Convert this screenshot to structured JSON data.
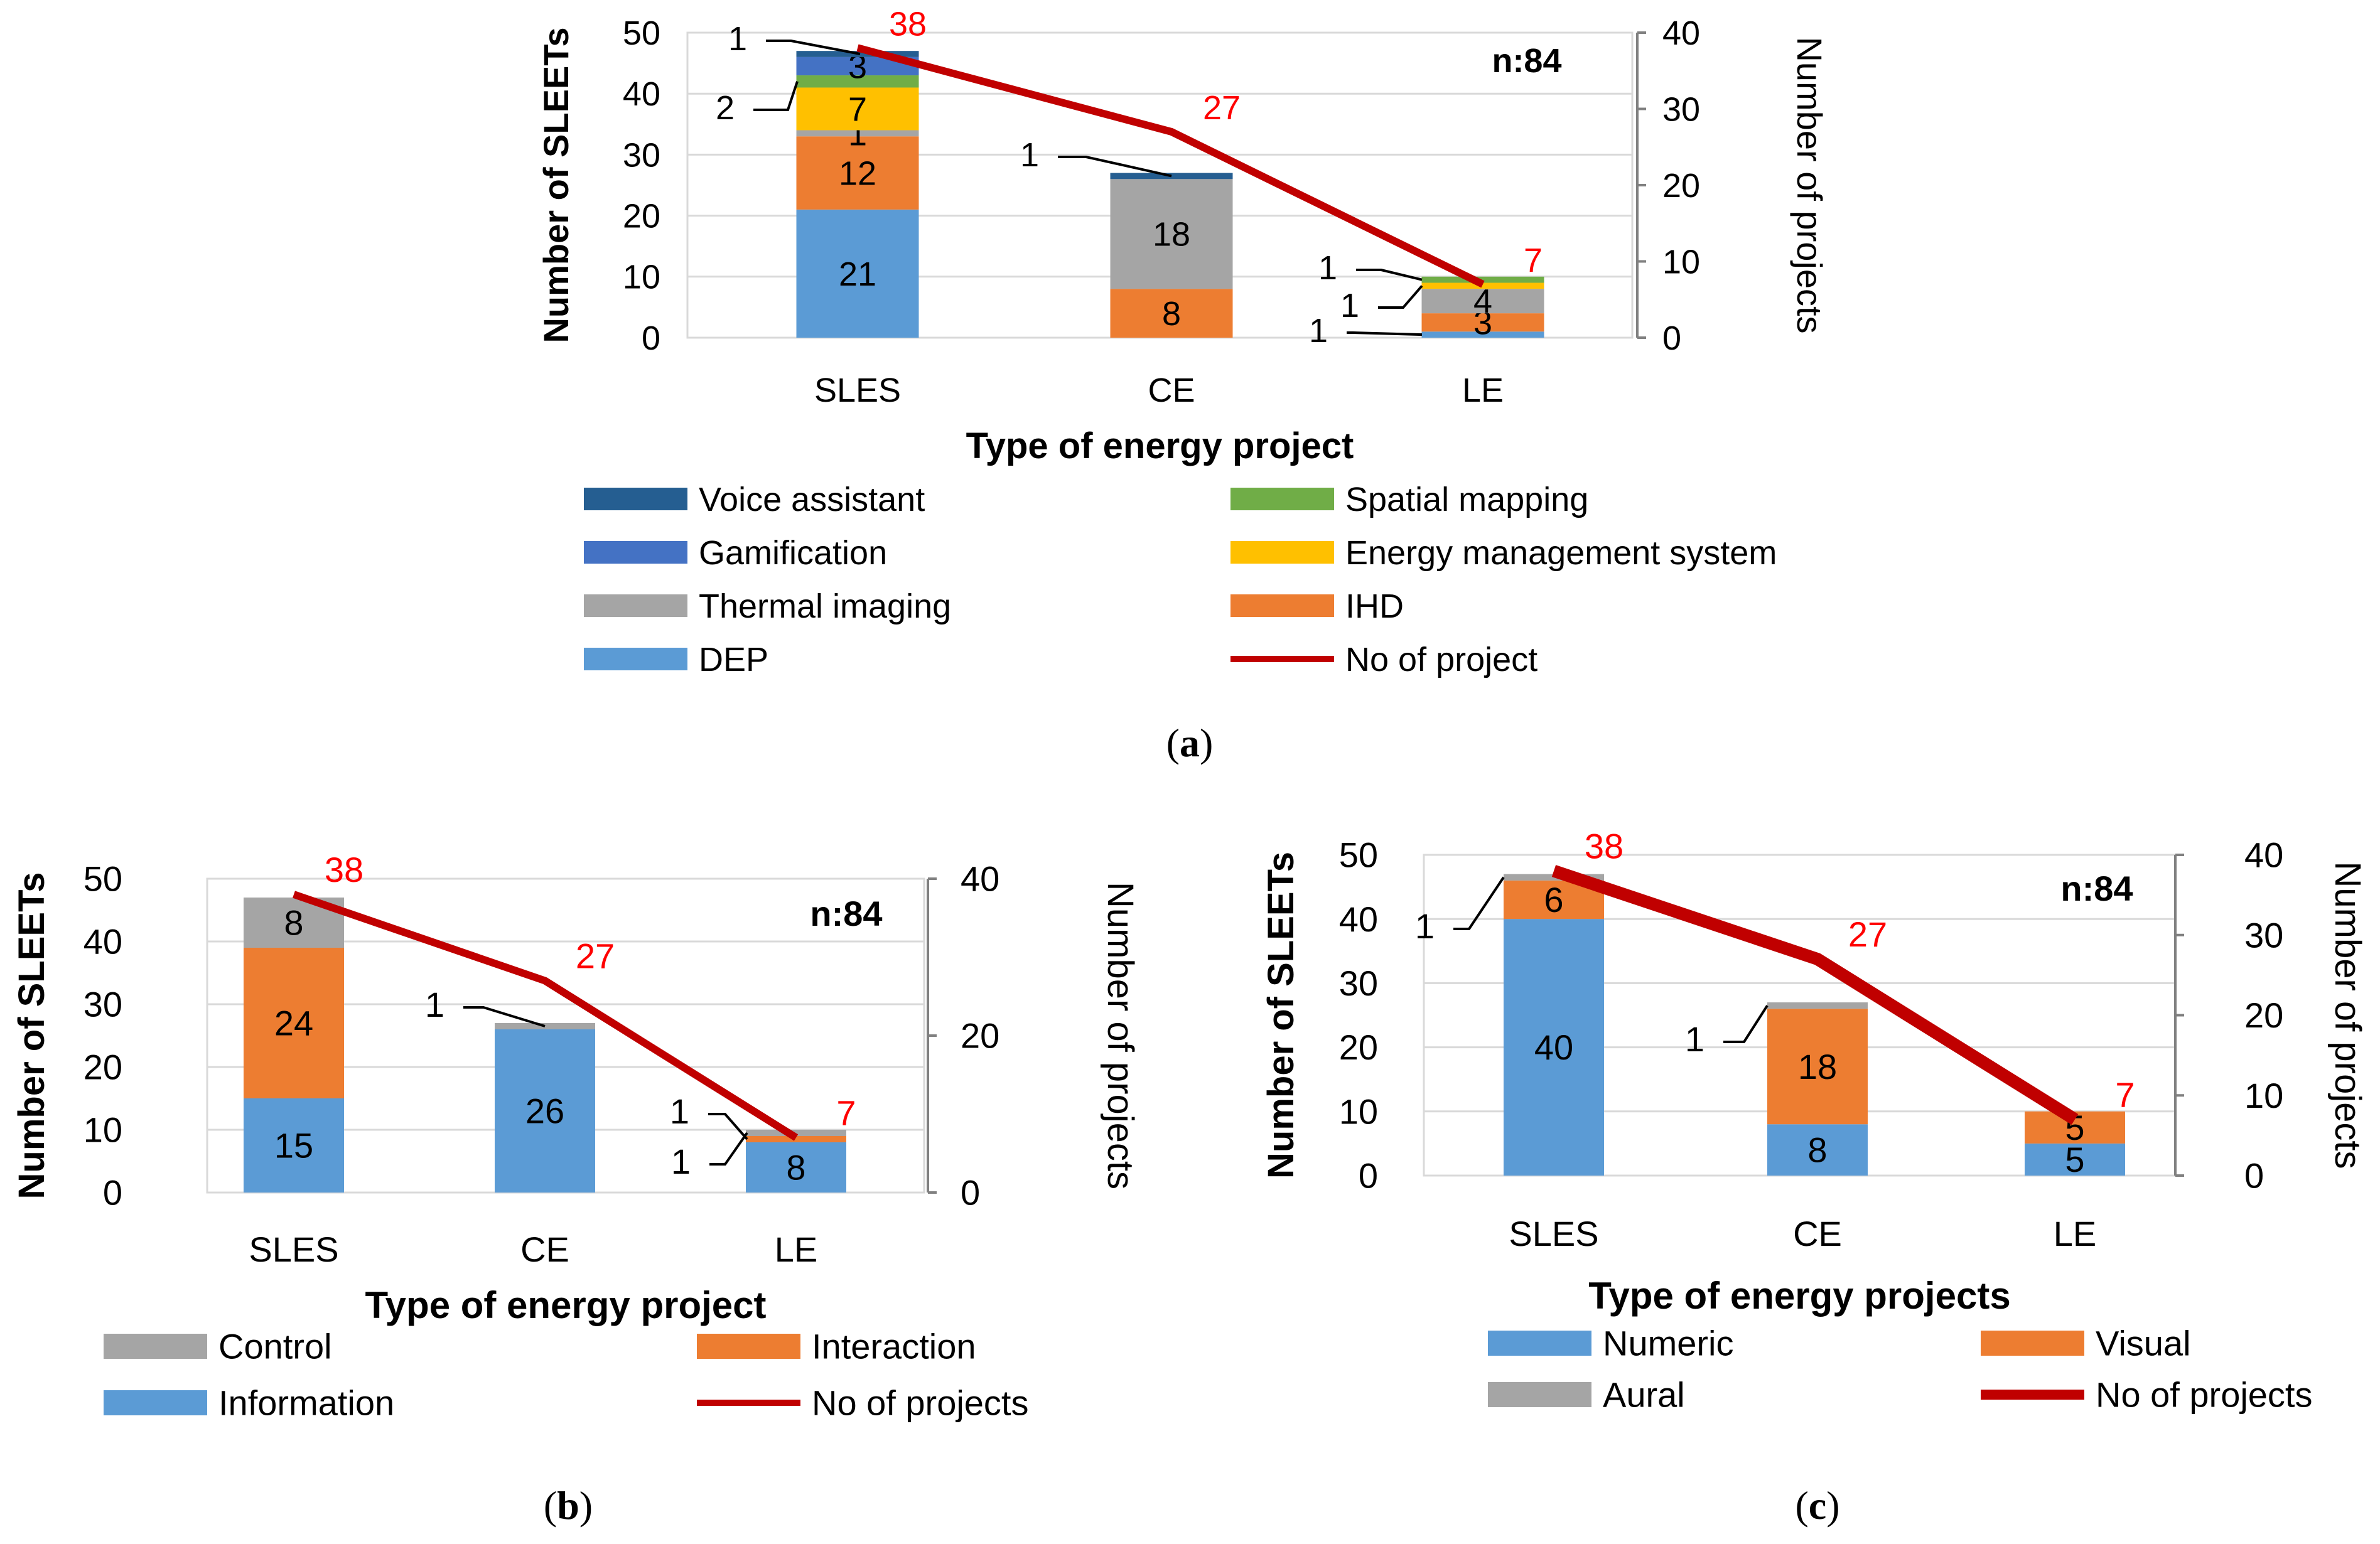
{
  "colors": {
    "voice": "#255E91",
    "gamification": "#4472C4",
    "thermal": "#A5A5A5",
    "dep": "#5B9BD5",
    "spatial": "#70AD47",
    "ems": "#FFC000",
    "ihd": "#ED7D31",
    "line": "#C00000",
    "axis_text": "#000000",
    "grid": "#D9D9D9",
    "red_label": "#FF0000"
  },
  "charts": [
    {
      "id": "a",
      "caption": "a",
      "annotation": "n:84",
      "chart_data": {
        "type": "bar",
        "stacked": true,
        "categories": [
          "SLES",
          "CE",
          "LE"
        ],
        "xlabel": "Type of energy project",
        "ylabel": "Number of SLEETs",
        "y2label": "Number of projects",
        "ylim": [
          0,
          50
        ],
        "y2lim": [
          0,
          40
        ],
        "yticks": [
          "0",
          "10",
          "20",
          "30",
          "40",
          "50"
        ],
        "y2ticks": [
          "0",
          "10",
          "20",
          "30",
          "40"
        ],
        "series": [
          {
            "name": "DEP",
            "color_key": "dep",
            "values": [
              21,
              0,
              1
            ],
            "labels": [
              "21",
              "",
              "1"
            ]
          },
          {
            "name": "IHD",
            "color_key": "ihd",
            "values": [
              12,
              8,
              3
            ],
            "labels": [
              "12",
              "8",
              "3"
            ]
          },
          {
            "name": "Thermal imaging",
            "color_key": "thermal",
            "values": [
              1,
              18,
              4
            ],
            "labels": [
              "1",
              "18",
              "4"
            ]
          },
          {
            "name": "Energy management system",
            "color_key": "ems",
            "values": [
              7,
              0,
              1
            ],
            "labels": [
              "7",
              "",
              "1"
            ]
          },
          {
            "name": "Spatial mapping",
            "color_key": "spatial",
            "values": [
              2,
              0,
              1
            ],
            "labels": [
              "2",
              "",
              "1"
            ]
          },
          {
            "name": "Gamification",
            "color_key": "gamification",
            "values": [
              3,
              0,
              0
            ],
            "labels": [
              "3",
              "",
              ""
            ]
          },
          {
            "name": "Voice assistant",
            "color_key": "voice",
            "values": [
              1,
              1,
              0
            ],
            "labels": [
              "1",
              "1",
              ""
            ]
          }
        ],
        "line": {
          "name": "No of project",
          "values": [
            38,
            27,
            7
          ],
          "labels": [
            "38",
            "27",
            "7"
          ]
        },
        "legend": [
          [
            "Voice assistant",
            "Spatial mapping"
          ],
          [
            "Gamification",
            "Energy management system"
          ],
          [
            "Thermal imaging",
            "IHD"
          ],
          [
            "DEP",
            "No of project"
          ]
        ]
      }
    },
    {
      "id": "b",
      "caption": "b",
      "annotation": "n:84",
      "chart_data": {
        "type": "bar",
        "stacked": true,
        "categories": [
          "SLES",
          "CE",
          "LE"
        ],
        "xlabel": "Type of energy project",
        "ylabel": "Number of SLEETs",
        "y2label": "Number of projects",
        "ylim": [
          0,
          50
        ],
        "y2lim": [
          0,
          40
        ],
        "yticks": [
          "0",
          "10",
          "20",
          "30",
          "40",
          "50"
        ],
        "y2ticks": [
          "0",
          "20",
          "40"
        ],
        "series": [
          {
            "name": "Information",
            "color_key": "dep",
            "values": [
              15,
              26,
              8
            ],
            "labels": [
              "15",
              "26",
              "8"
            ]
          },
          {
            "name": "Interaction",
            "color_key": "ihd",
            "values": [
              24,
              0,
              1
            ],
            "labels": [
              "24",
              "",
              "1"
            ]
          },
          {
            "name": "Control",
            "color_key": "thermal",
            "values": [
              8,
              1,
              1
            ],
            "labels": [
              "8",
              "1",
              "1"
            ]
          }
        ],
        "line": {
          "name": "No of projects",
          "values": [
            38,
            27,
            7
          ],
          "labels": [
            "38",
            "27",
            "7"
          ]
        },
        "legend": [
          [
            "Control",
            "Interaction"
          ],
          [
            "Information",
            "No of projects"
          ]
        ]
      }
    },
    {
      "id": "c",
      "caption": "c",
      "annotation": "n:84",
      "chart_data": {
        "type": "bar",
        "stacked": true,
        "categories": [
          "SLES",
          "CE",
          "LE"
        ],
        "xlabel": "Type of energy projects",
        "ylabel": "Number of SLEETs",
        "y2label": "Number of projects",
        "ylim": [
          0,
          50
        ],
        "y2lim": [
          0,
          40
        ],
        "yticks": [
          "0",
          "10",
          "20",
          "30",
          "40",
          "50"
        ],
        "y2ticks": [
          "0",
          "10",
          "20",
          "30",
          "40"
        ],
        "series": [
          {
            "name": "Numeric",
            "color_key": "dep",
            "values": [
              40,
              8,
              5
            ],
            "labels": [
              "40",
              "8",
              "5"
            ]
          },
          {
            "name": "Visual",
            "color_key": "ihd",
            "values": [
              6,
              18,
              5
            ],
            "labels": [
              "6",
              "18",
              "5"
            ]
          },
          {
            "name": "Aural",
            "color_key": "thermal",
            "values": [
              1,
              1,
              0
            ],
            "labels": [
              "1",
              "1",
              ""
            ]
          }
        ],
        "line": {
          "name": "No of projects",
          "values": [
            38,
            27,
            7
          ],
          "labels": [
            "38",
            "27",
            "7"
          ]
        },
        "legend": [
          [
            "Numeric",
            "Visual"
          ],
          [
            "Aural",
            "No of projects"
          ]
        ]
      }
    }
  ]
}
